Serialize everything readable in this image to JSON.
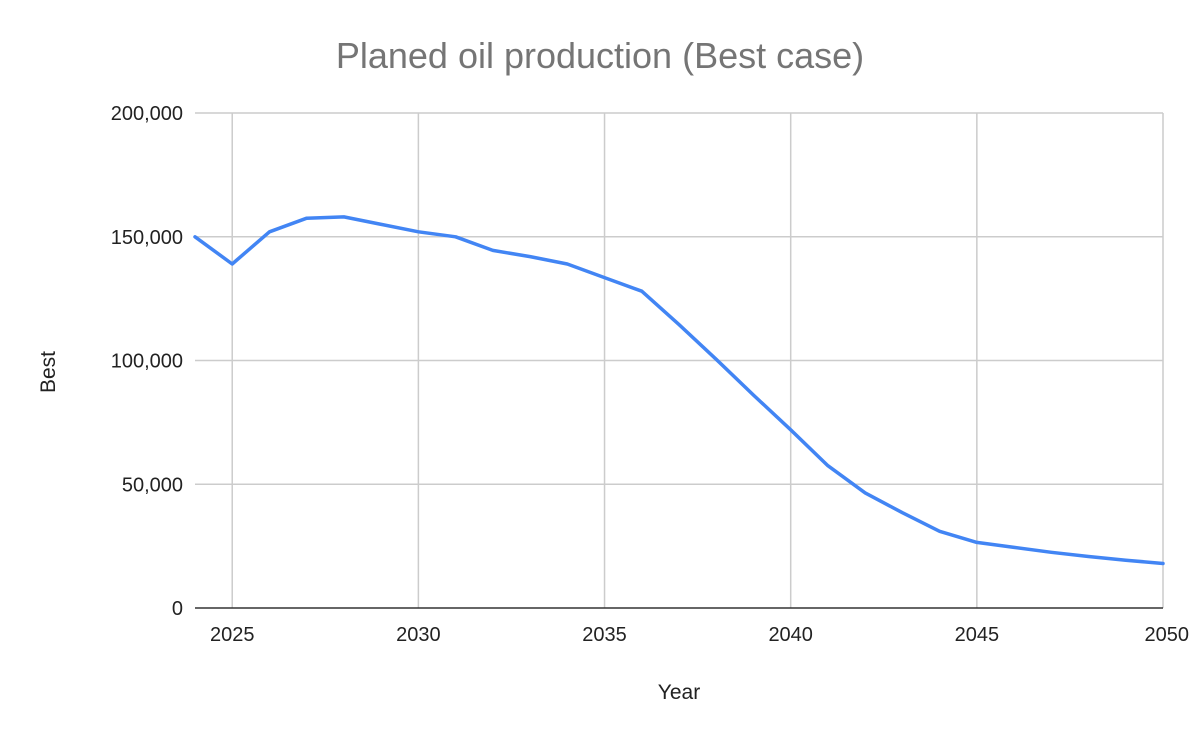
{
  "chart_data": {
    "type": "line",
    "title": "Planed oil production (Best case)",
    "xlabel": "Year",
    "ylabel": "Best",
    "xlim": [
      2024,
      2050
    ],
    "ylim": [
      0,
      200000
    ],
    "x_ticks": [
      2025,
      2030,
      2035,
      2040,
      2045,
      2050
    ],
    "x_tick_labels": [
      "2025",
      "2030",
      "2035",
      "2040",
      "2045",
      "2050"
    ],
    "y_ticks": [
      0,
      50000,
      100000,
      150000,
      200000
    ],
    "y_tick_labels": [
      "0",
      "50,000",
      "100,000",
      "150,000",
      "200,000"
    ],
    "grid": true,
    "legend": "none",
    "colors": {
      "series": "#4285f4",
      "grid": "#cccccc",
      "axis": "#333333",
      "title": "#757575",
      "text": "#222222"
    },
    "x": [
      2024,
      2025,
      2026,
      2027,
      2028,
      2029,
      2030,
      2031,
      2032,
      2033,
      2034,
      2035,
      2036,
      2037,
      2038,
      2039,
      2040,
      2041,
      2042,
      2043,
      2044,
      2045,
      2046,
      2047,
      2048,
      2049,
      2050
    ],
    "series": [
      {
        "values": [
          150000,
          139000,
          152000,
          157500,
          158000,
          155000,
          152000,
          150000,
          144500,
          142000,
          139000,
          133500,
          128000,
          114500,
          100500,
          86000,
          72000,
          57500,
          46500,
          38500,
          31000,
          26500,
          24500,
          22500,
          20800,
          19300,
          18000
        ]
      }
    ]
  }
}
